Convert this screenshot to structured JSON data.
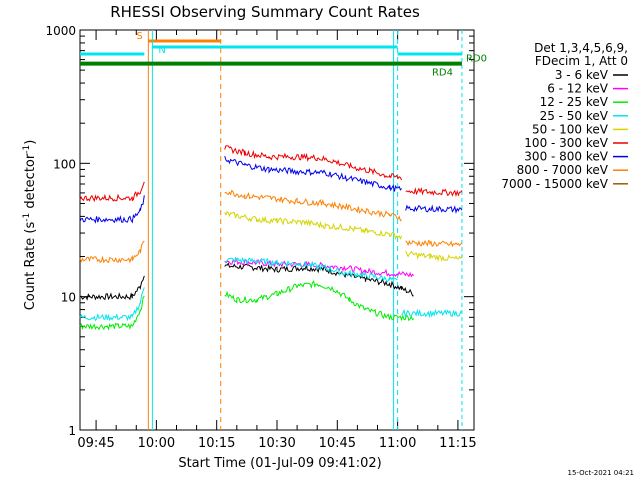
{
  "chart_data": {
    "type": "line",
    "title": "RHESSI Observing Summary Count Rates",
    "xlabel": "Start Time (01-Jul-09 09:41:02)",
    "ylabel": "Count Rate (s⁻¹ detector⁻¹)",
    "ylabel_parts": {
      "main": "Count Rate (s",
      "sup1": "-1",
      "mid": " detector",
      "sup2": "-1",
      "end": ")"
    },
    "y_scale": "log",
    "ylim": [
      1,
      1000
    ],
    "y_ticks": [
      {
        "value": 1,
        "label": "1"
      },
      {
        "value": 10,
        "label": "10"
      },
      {
        "value": 100,
        "label": "100"
      },
      {
        "value": 1000,
        "label": "1000"
      }
    ],
    "xlim": [
      "09:41",
      "11:19"
    ],
    "x_ticks": [
      "09:45",
      "10:00",
      "10:15",
      "10:30",
      "10:45",
      "11:00",
      "11:15"
    ],
    "timestamp": "15-Oct-2021 04:21",
    "legend_header": [
      "Det 1,3,4,5,6,9,",
      "FDecim 1, Att 0"
    ],
    "legend_position": "right",
    "series": [
      {
        "name": "3 - 6 keV",
        "color": "#000000",
        "points": [
          [
            "09:41",
            10.0
          ],
          [
            "09:54",
            10.0
          ],
          [
            "09:56",
            12.0
          ],
          [
            "09:57",
            15.0
          ],
          [
            "09:58",
            null
          ],
          [
            "10:17",
            null
          ],
          [
            "10:17",
            17.0
          ],
          [
            "10:25",
            16.5
          ],
          [
            "10:30",
            16.0
          ],
          [
            "10:37",
            16.5
          ],
          [
            "10:42",
            16.0
          ],
          [
            "10:47",
            14.5
          ],
          [
            "10:52",
            13.5
          ],
          [
            "10:58",
            12.5
          ],
          [
            "11:01",
            11.5
          ],
          [
            "11:04",
            10.5
          ]
        ]
      },
      {
        "name": "6 - 12 keV",
        "color": "#ff00ff",
        "points": [
          [
            "10:17",
            18.5
          ],
          [
            "10:25",
            18.0
          ],
          [
            "10:30",
            17.5
          ],
          [
            "10:37",
            17.5
          ],
          [
            "10:42",
            17.0
          ],
          [
            "10:47",
            16.5
          ],
          [
            "10:52",
            15.5
          ],
          [
            "10:58",
            15.0
          ],
          [
            "11:04",
            14.5
          ]
        ]
      },
      {
        "name": "12 - 25 keV",
        "color": "#00ee00",
        "points": [
          [
            "09:41",
            6.0
          ],
          [
            "09:54",
            6.0
          ],
          [
            "09:56",
            8.0
          ],
          [
            "09:57",
            10.0
          ],
          [
            "09:58",
            null
          ],
          [
            "10:17",
            null
          ],
          [
            "10:17",
            10.5
          ],
          [
            "10:20",
            9.5
          ],
          [
            "10:25",
            9.5
          ],
          [
            "10:30",
            10.5
          ],
          [
            "10:35",
            12.0
          ],
          [
            "10:40",
            12.5
          ],
          [
            "10:44",
            11.5
          ],
          [
            "10:48",
            9.5
          ],
          [
            "10:52",
            8.0
          ],
          [
            "10:58",
            7.0
          ],
          [
            "11:04",
            7.0
          ]
        ]
      },
      {
        "name": "25 - 50 keV",
        "color": "#00e5ee",
        "points": [
          [
            "09:41",
            7.0
          ],
          [
            "09:54",
            7.0
          ],
          [
            "09:56",
            9.0
          ],
          [
            "09:57",
            12.0
          ],
          [
            "09:58",
            null
          ],
          [
            "10:17",
            null
          ],
          [
            "10:17",
            19.0
          ],
          [
            "10:25",
            18.5
          ],
          [
            "10:30",
            18.0
          ],
          [
            "10:37",
            17.5
          ],
          [
            "10:42",
            16.5
          ],
          [
            "10:47",
            15.0
          ],
          [
            "10:52",
            14.5
          ],
          [
            "10:58",
            13.5
          ],
          [
            "11:00",
            13.0
          ],
          [
            "11:01",
            null
          ],
          [
            "11:01",
            7.5
          ],
          [
            "11:16",
            7.5
          ]
        ]
      },
      {
        "name": "50 - 100 keV",
        "color": "#d4d400",
        "points": [
          [
            "10:17",
            42.0
          ],
          [
            "10:25",
            38.0
          ],
          [
            "10:30",
            37.0
          ],
          [
            "10:37",
            36.0
          ],
          [
            "10:42",
            34.0
          ],
          [
            "10:47",
            33.0
          ],
          [
            "10:52",
            31.0
          ],
          [
            "10:58",
            29.5
          ],
          [
            "11:01",
            28.0
          ],
          [
            "11:01",
            null
          ],
          [
            "11:02",
            null
          ],
          [
            "11:02",
            21.0
          ],
          [
            "11:08",
            20.0
          ],
          [
            "11:16",
            19.0
          ]
        ]
      },
      {
        "name": "100 - 300 keV",
        "color": "#ee0000",
        "points": [
          [
            "09:41",
            55.0
          ],
          [
            "09:54",
            55.0
          ],
          [
            "09:56",
            62.0
          ],
          [
            "09:57",
            75.0
          ],
          [
            "09:58",
            null
          ],
          [
            "10:17",
            null
          ],
          [
            "10:17",
            130.0
          ],
          [
            "10:22",
            120.0
          ],
          [
            "10:28",
            112.0
          ],
          [
            "10:35",
            112.0
          ],
          [
            "10:40",
            110.0
          ],
          [
            "10:44",
            104.0
          ],
          [
            "10:48",
            95.0
          ],
          [
            "10:53",
            88.0
          ],
          [
            "10:58",
            80.0
          ],
          [
            "11:01",
            78.0
          ],
          [
            "11:01",
            null
          ],
          [
            "11:02",
            null
          ],
          [
            "11:02",
            62.0
          ],
          [
            "11:08",
            61.0
          ],
          [
            "11:16",
            60.0
          ]
        ]
      },
      {
        "name": "300 - 800 keV",
        "color": "#0000ee",
        "points": [
          [
            "09:41",
            38.0
          ],
          [
            "09:54",
            38.0
          ],
          [
            "09:56",
            44.0
          ],
          [
            "09:57",
            55.0
          ],
          [
            "09:58",
            null
          ],
          [
            "10:17",
            null
          ],
          [
            "10:17",
            108.0
          ],
          [
            "10:22",
            97.0
          ],
          [
            "10:28",
            90.0
          ],
          [
            "10:35",
            87.0
          ],
          [
            "10:42",
            85.0
          ],
          [
            "10:47",
            78.0
          ],
          [
            "10:52",
            72.0
          ],
          [
            "10:58",
            66.0
          ],
          [
            "11:01",
            63.0
          ],
          [
            "11:01",
            null
          ],
          [
            "11:02",
            null
          ],
          [
            "11:02",
            46.0
          ],
          [
            "11:08",
            45.5
          ],
          [
            "11:16",
            45.0
          ]
        ]
      },
      {
        "name": "800 - 7000 keV",
        "color": "#ff8000",
        "points": [
          [
            "09:41",
            19.0
          ],
          [
            "09:54",
            19.0
          ],
          [
            "09:56",
            22.0
          ],
          [
            "09:57",
            26.0
          ],
          [
            "09:58",
            null
          ],
          [
            "10:17",
            null
          ],
          [
            "10:17",
            62.0
          ],
          [
            "10:22",
            57.0
          ],
          [
            "10:28",
            55.0
          ],
          [
            "10:35",
            52.0
          ],
          [
            "10:42",
            50.0
          ],
          [
            "10:47",
            47.0
          ],
          [
            "10:52",
            44.0
          ],
          [
            "10:58",
            41.0
          ],
          [
            "11:01",
            39.0
          ],
          [
            "11:01",
            null
          ],
          [
            "11:02",
            null
          ],
          [
            "11:02",
            25.5
          ],
          [
            "11:08",
            25.0
          ],
          [
            "11:16",
            24.5
          ]
        ]
      },
      {
        "name": "7000 - 15000 keV",
        "color": "#a05a00",
        "points": []
      }
    ],
    "markers": [
      {
        "label": "S",
        "color": "#ff8000",
        "start": "09:58",
        "end": "10:16"
      },
      {
        "label": "N",
        "color": "#00e5ee",
        "start": "09:59",
        "end": "11:00"
      }
    ],
    "top_bars": [
      {
        "label": "RD4",
        "color": "#008000",
        "y": 560,
        "start": "09:41",
        "end": "11:16"
      },
      {
        "label": "RD0",
        "color": "#008000",
        "y": 560,
        "start": "11:16",
        "end": "11:17"
      }
    ],
    "night_bars": [
      {
        "color": "#00e5ee",
        "y": 660,
        "start": "09:41",
        "end": "09:57"
      },
      {
        "color": "#00e5ee",
        "y": 660,
        "start": "11:00",
        "end": "11:16"
      }
    ]
  }
}
